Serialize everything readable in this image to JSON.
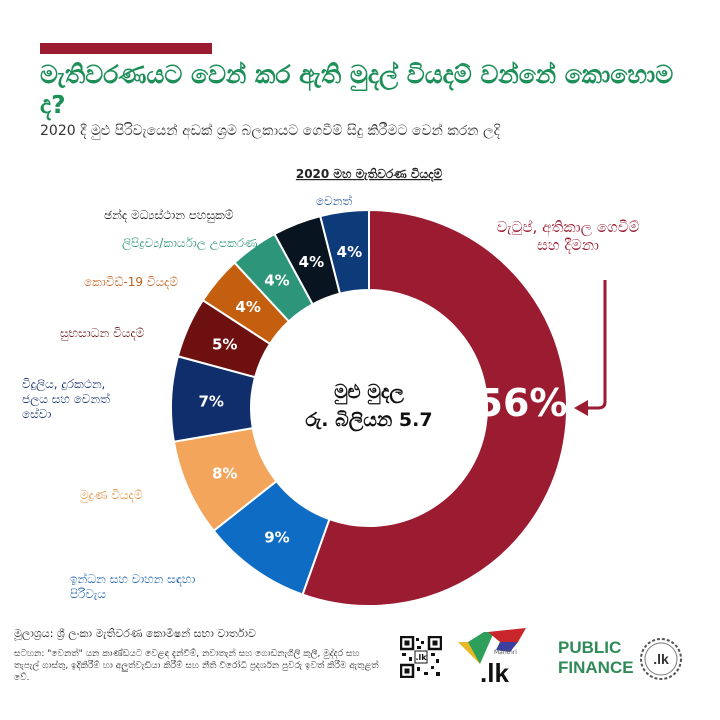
{
  "header": {
    "title": "මැතිවරණයට වෙන් කර ඇති මුදල් වියදම් වන්නේ කොහොම ද?",
    "subtitle": "2020 දී මුළු පිරිවැයෙන් අඩක් ශ්‍රම බලකායට ගෙවීම් සිදු කිරීමට වෙන් කරන ලදි"
  },
  "chart_data": {
    "type": "pie",
    "style": "donut",
    "title": "2020 මහ මැතිවරණ වියදම්",
    "center_label": [
      "මුළු මුදල",
      "රු. බිලියන 5.7"
    ],
    "slices": [
      {
        "label": "වැටුප්, අතිකාල ගෙවීම් සහ දීමනා",
        "value": 56,
        "display": "56%",
        "color": "#9b1b30"
      },
      {
        "label": "ඉන්ධන සහ වාහන සඳහා පිරිවැය",
        "value": 9,
        "display": "9%",
        "color": "#0f6cc4"
      },
      {
        "label": "මුද්‍රණ වියදම්",
        "value": 8,
        "display": "8%",
        "color": "#f3a55c"
      },
      {
        "label": "විදුලිය, දුරකථන, ජලය සහ වෙනත් සේවා",
        "value": 7,
        "display": "7%",
        "color": "#0f2e6b"
      },
      {
        "label": "සුභසාධන වියදම්",
        "value": 5,
        "display": "5%",
        "color": "#6e1010"
      },
      {
        "label": "කොවිඩ්-19 වියදම්",
        "value": 4,
        "display": "4%",
        "color": "#c55f10"
      },
      {
        "label": "ලිපිද්‍රව්‍ය/කාර්යාල උපකරණ",
        "value": 4,
        "display": "4%",
        "color": "#2c957a"
      },
      {
        "label": "ඡන්ද මධ්‍යස්ථාන පහසුකම්",
        "value": 4,
        "display": "4%",
        "color": "#081520"
      },
      {
        "label": "වෙනත්",
        "value": 4,
        "display": "4%",
        "color": "#0d3a78"
      }
    ]
  },
  "footer": {
    "source": "මූලාශ්‍රය: ශ්‍රී ලංකා මැතිවරණ කොමිෂන් සභා වාර්තාව",
    "note": "සටහන: \"වෙනත්\" යන කාණ්ඩයට වෙළඳ දැන්වීම්, නවාතැන් සහ ගොඩනැගිලි කුලී, මුද්දර සහ තැපැල් ගාස්තු, ඉදිකිරීම් හා අලුත්වැඩියා කිරීම් සහ නීති විරෝධී ප්‍රදර්ශන පුවරු ඉවත් කිරීම ඇතුළත් වේ.",
    "logo_text": ".lk",
    "logo_small": "Manthri",
    "brand_line1": "PUBLIC",
    "brand_line2": "FINANCE",
    "badge_text": ".lk"
  }
}
